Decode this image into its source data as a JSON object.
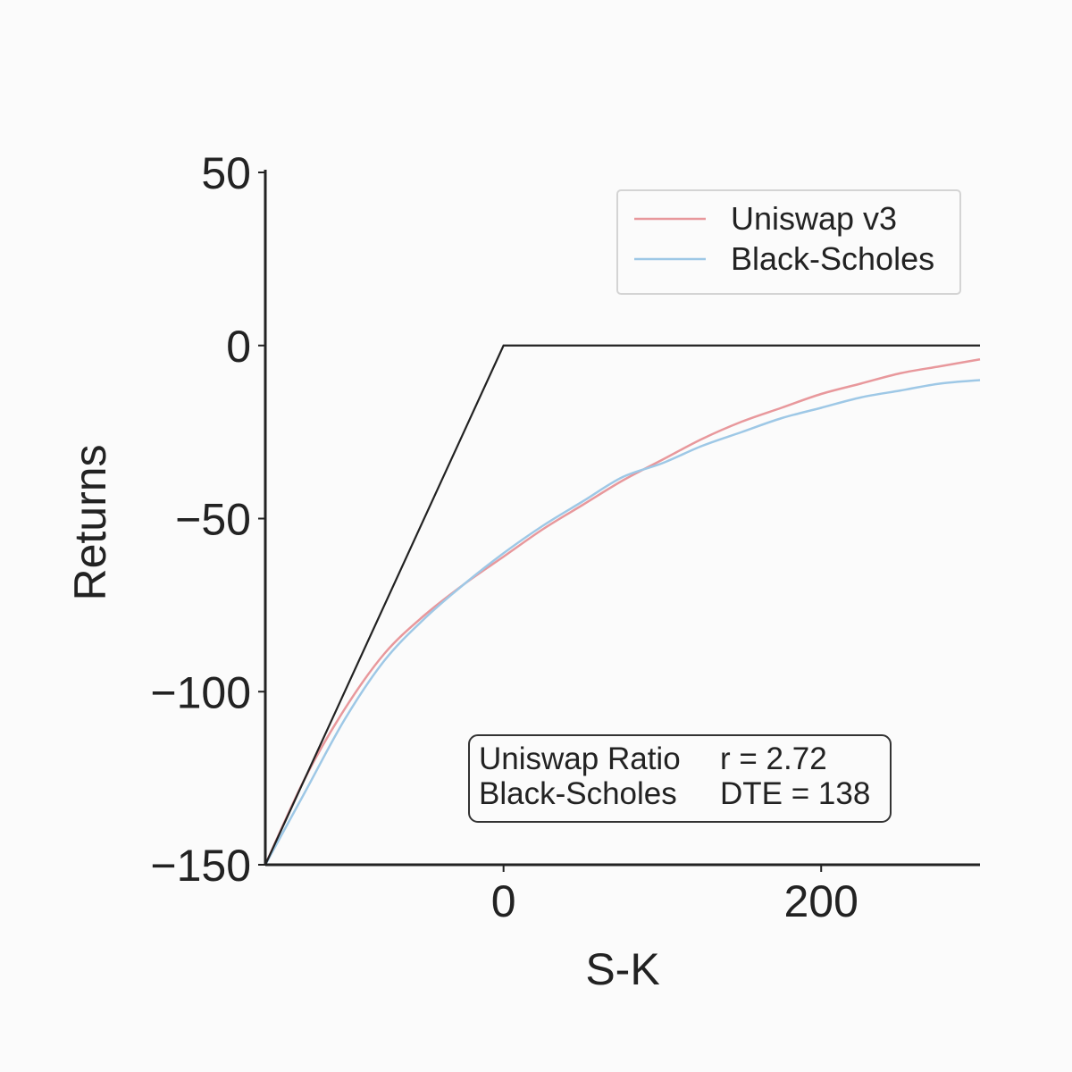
{
  "chart_data": {
    "type": "line",
    "xlabel": "S-K",
    "ylabel": "Returns",
    "xlim": [
      -150,
      300
    ],
    "ylim": [
      -150,
      50
    ],
    "xticks": [
      0,
      200
    ],
    "xtick_labels": [
      "0",
      "200"
    ],
    "yticks": [
      50,
      0,
      -50,
      -100,
      -150
    ],
    "ytick_labels": [
      "50",
      "0",
      "−50",
      "−100",
      "−150"
    ],
    "grid": false,
    "legend": {
      "placement": "upper-right",
      "entries": [
        "Uniswap v3",
        "Black-Scholes"
      ]
    },
    "series": [
      {
        "name": "Uniswap v3",
        "color": "#e8989c",
        "x": [
          -150,
          -125,
          -100,
          -75,
          -50,
          -25,
          0,
          25,
          50,
          75,
          100,
          125,
          150,
          175,
          200,
          225,
          250,
          275,
          300
        ],
        "y": [
          -150,
          -125,
          -105,
          -89,
          -78,
          -69,
          -61,
          -53,
          -46,
          -39,
          -33,
          -27,
          -22,
          -18,
          -14,
          -11,
          -8,
          -6,
          -4
        ]
      },
      {
        "name": "Black-Scholes",
        "color": "#9ec8e6",
        "x": [
          -150,
          -125,
          -100,
          -75,
          -50,
          -25,
          0,
          25,
          50,
          75,
          100,
          125,
          150,
          175,
          200,
          225,
          250,
          275,
          300
        ],
        "y": [
          -150,
          -129,
          -108,
          -91,
          -79,
          -69,
          -60,
          -52,
          -45,
          -38,
          -34,
          -29,
          -25,
          -21,
          -18,
          -15,
          -13,
          -11,
          -10
        ]
      },
      {
        "name": "",
        "color": "#222222",
        "x": [
          -150,
          0,
          300
        ],
        "y": [
          -150,
          0,
          0
        ]
      }
    ],
    "annotation": {
      "rows": [
        {
          "label": "Uniswap Ratio",
          "value": "r = 2.72"
        },
        {
          "label": "Black-Scholes",
          "value": "DTE = 138"
        }
      ]
    }
  }
}
